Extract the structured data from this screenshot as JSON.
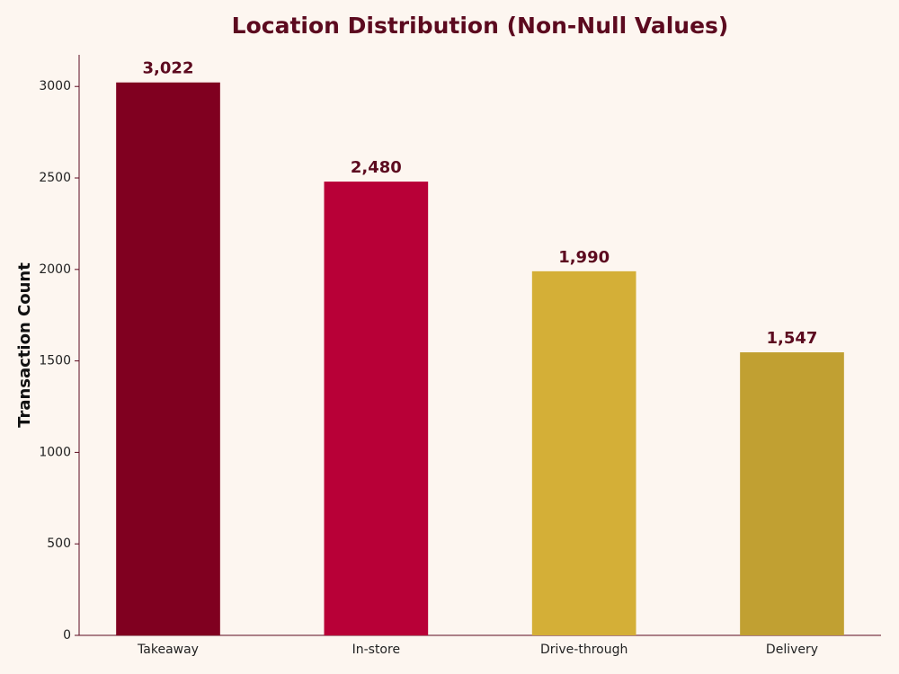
{
  "chart_data": {
    "type": "bar",
    "title": "Location Distribution (Non-Null Values)",
    "y_label": "Transaction Count",
    "categories": [
      "Takeaway",
      "In-store",
      "Drive-through",
      "Delivery"
    ],
    "values": [
      3022,
      2480,
      1990,
      1547
    ],
    "value_labels": [
      "3,022",
      "2,480",
      "1,990",
      "1,547"
    ],
    "colors": [
      "#800020",
      "#b80037",
      "#d4af37",
      "#c1a032"
    ],
    "ylim": [
      0,
      3173
    ],
    "yticks": [
      0,
      500,
      1000,
      1500,
      2000,
      2500,
      3000
    ],
    "grid": false
  }
}
